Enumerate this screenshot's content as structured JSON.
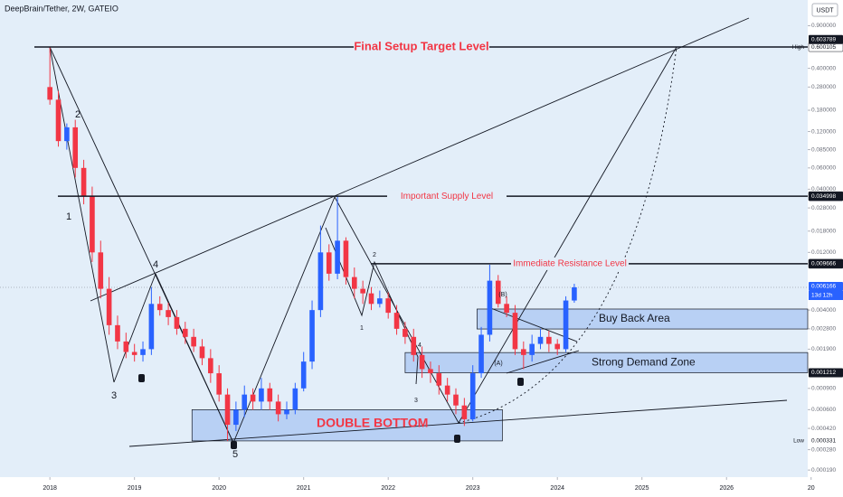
{
  "chart_data": {
    "type": "candlestick",
    "title": "DeepBrain/Tether, 2W, GATEIO",
    "currency": "USDT",
    "log_scale": true,
    "up_color": "#2962ff",
    "down_color": "#f23645",
    "x": [
      2018.0,
      2018.1,
      2018.2,
      2018.3,
      2018.4,
      2018.5,
      2018.6,
      2018.7,
      2018.8,
      2018.9,
      2019.0,
      2019.1,
      2019.2,
      2019.3,
      2019.4,
      2019.5,
      2019.6,
      2019.7,
      2019.8,
      2019.9,
      2020.0,
      2020.1,
      2020.2,
      2020.3,
      2020.4,
      2020.5,
      2020.6,
      2020.7,
      2020.8,
      2020.9,
      2021.0,
      2021.1,
      2021.2,
      2021.3,
      2021.4,
      2021.5,
      2021.6,
      2021.7,
      2021.8,
      2021.9,
      2022.0,
      2022.1,
      2022.2,
      2022.3,
      2022.4,
      2022.5,
      2022.6,
      2022.7,
      2022.8,
      2022.9,
      2023.0,
      2023.1,
      2023.2,
      2023.3,
      2023.4,
      2023.5,
      2023.6,
      2023.7,
      2023.8,
      2023.9,
      2024.0,
      2024.1,
      2024.2
    ],
    "open": [
      0.28,
      0.22,
      0.1,
      0.13,
      0.06,
      0.035,
      0.012,
      0.006,
      0.003,
      0.0022,
      0.0018,
      0.0017,
      0.0019,
      0.0045,
      0.004,
      0.0035,
      0.0028,
      0.0024,
      0.002,
      0.0016,
      0.0012,
      0.0008,
      0.00045,
      0.0006,
      0.0008,
      0.0007,
      0.0009,
      0.0007,
      0.00055,
      0.0006,
      0.0009,
      0.0015,
      0.004,
      0.012,
      0.008,
      0.015,
      0.0075,
      0.006,
      0.0055,
      0.0045,
      0.005,
      0.0038,
      0.0028,
      0.0024,
      0.0017,
      0.0013,
      0.0012,
      0.00095,
      0.0008,
      0.00065,
      0.0005,
      0.0012,
      0.0025,
      0.007,
      0.0045,
      0.0038,
      0.0019,
      0.0017,
      0.0021,
      0.0024,
      0.0021,
      0.0019,
      0.0048
    ],
    "high": [
      0.6,
      0.26,
      0.14,
      0.15,
      0.07,
      0.042,
      0.015,
      0.0075,
      0.0036,
      0.0026,
      0.0021,
      0.0022,
      0.0062,
      0.0052,
      0.0046,
      0.004,
      0.0032,
      0.0028,
      0.0023,
      0.0019,
      0.0014,
      0.0009,
      0.0007,
      0.00095,
      0.0009,
      0.0011,
      0.001,
      0.0008,
      0.0007,
      0.001,
      0.0018,
      0.0048,
      0.02,
      0.014,
      0.035,
      0.016,
      0.009,
      0.007,
      0.0062,
      0.0058,
      0.0056,
      0.0044,
      0.0032,
      0.0028,
      0.002,
      0.0015,
      0.0014,
      0.0011,
      0.0009,
      0.00075,
      0.0014,
      0.0029,
      0.0095,
      0.0078,
      0.0052,
      0.0044,
      0.0022,
      0.0025,
      0.0028,
      0.0027,
      0.0023,
      0.0052,
      0.0066
    ],
    "low": [
      0.2,
      0.09,
      0.085,
      0.05,
      0.03,
      0.01,
      0.005,
      0.0025,
      0.0019,
      0.0016,
      0.0015,
      0.0015,
      0.0017,
      0.0036,
      0.003,
      0.0025,
      0.0021,
      0.0018,
      0.0014,
      0.001,
      0.0007,
      0.000331,
      0.0004,
      0.00052,
      0.0006,
      0.0006,
      0.0006,
      0.00048,
      0.0005,
      0.00055,
      0.00085,
      0.0013,
      0.0035,
      0.007,
      0.0072,
      0.0065,
      0.005,
      0.0045,
      0.004,
      0.0042,
      0.0034,
      0.0025,
      0.0021,
      0.0015,
      0.0011,
      0.001,
      0.0008,
      0.0007,
      0.00055,
      0.00044,
      0.00048,
      0.0011,
      0.0022,
      0.0042,
      0.0035,
      0.0017,
      0.0013,
      0.0015,
      0.0019,
      0.0018,
      0.0017,
      0.0018,
      0.0046
    ],
    "close": [
      0.22,
      0.1,
      0.13,
      0.06,
      0.035,
      0.012,
      0.006,
      0.003,
      0.0022,
      0.0018,
      0.0017,
      0.0019,
      0.0045,
      0.004,
      0.0035,
      0.0028,
      0.0024,
      0.002,
      0.0016,
      0.0012,
      0.0008,
      0.00045,
      0.0006,
      0.0008,
      0.0007,
      0.0009,
      0.0007,
      0.00055,
      0.0006,
      0.0009,
      0.0015,
      0.004,
      0.012,
      0.008,
      0.015,
      0.0075,
      0.006,
      0.0055,
      0.0045,
      0.005,
      0.0038,
      0.0028,
      0.0024,
      0.0017,
      0.0013,
      0.0012,
      0.00095,
      0.0008,
      0.00065,
      0.0005,
      0.0012,
      0.0025,
      0.007,
      0.0045,
      0.0038,
      0.0019,
      0.0017,
      0.0021,
      0.0024,
      0.0021,
      0.0019,
      0.0048,
      0.006166
    ],
    "xlim": [
      2017.41,
      2026.96
    ],
    "xticks": [
      2018,
      2019,
      2020,
      2021,
      2022,
      2023,
      2024,
      2025,
      2026,
      {
        "value": 2027,
        "label": "20"
      }
    ],
    "ylim": [
      0.000166,
      1.47
    ],
    "yticks": [
      {
        "value": 0.9,
        "label": "0.900000"
      },
      {
        "value": 0.4,
        "label": "0.400000"
      },
      {
        "value": 0.28,
        "label": "0.280000"
      },
      {
        "value": 0.18,
        "label": "0.180000"
      },
      {
        "value": 0.12,
        "label": "0.120000"
      },
      {
        "value": 0.085,
        "label": "0.085000"
      },
      {
        "value": 0.06,
        "label": "0.060000"
      },
      {
        "value": 0.04,
        "label": "0.040000"
      },
      {
        "value": 0.028,
        "label": "0.028000"
      },
      {
        "value": 0.018,
        "label": "0.018000"
      },
      {
        "value": 0.012,
        "label": "0.012000"
      },
      {
        "value": 0.004,
        "label": "0.004000"
      },
      {
        "value": 0.0028,
        "label": "0.002800"
      },
      {
        "value": 0.0019,
        "label": "0.001900"
      },
      {
        "value": 0.0009,
        "label": "0.000900"
      },
      {
        "value": 0.0006,
        "label": "0.000600"
      },
      {
        "value": 0.00042,
        "label": "0.000420"
      },
      {
        "value": 0.00028,
        "label": "0.000280"
      },
      {
        "value": 0.00019,
        "label": "0.000190"
      }
    ],
    "levels": [
      {
        "value": 0.600105,
        "name": "Final Setup Target Level",
        "note": "High"
      },
      {
        "value": 0.034998,
        "name": "Important Supply Level"
      },
      {
        "value": 0.009666,
        "name": "Immediate Resistance Level"
      }
    ],
    "tags": [
      {
        "value": 0.603789
      },
      {
        "value": 0.006166,
        "note": "13d 12h"
      },
      {
        "value": 0.000331,
        "note": "Low"
      }
    ],
    "zones": [
      {
        "name": "Buy Back Area",
        "low": 0.00279,
        "high": 0.00408,
        "x0": 2023.05,
        "x1": 2026.96
      },
      {
        "name": "Strong Demand Zone",
        "low": 0.001212,
        "high": 0.00178,
        "x0": 2022.2,
        "x1": 2026.96
      },
      {
        "name": "DOUBLE BOTTOM",
        "low": 0.000331,
        "high": 0.0006,
        "x0": 2019.68,
        "x1": 2023.35
      }
    ],
    "wave_labels": [
      "2",
      "1",
      "4",
      "3",
      "5",
      "2",
      "1",
      "4",
      "3",
      "(B)",
      "(A)"
    ]
  }
}
